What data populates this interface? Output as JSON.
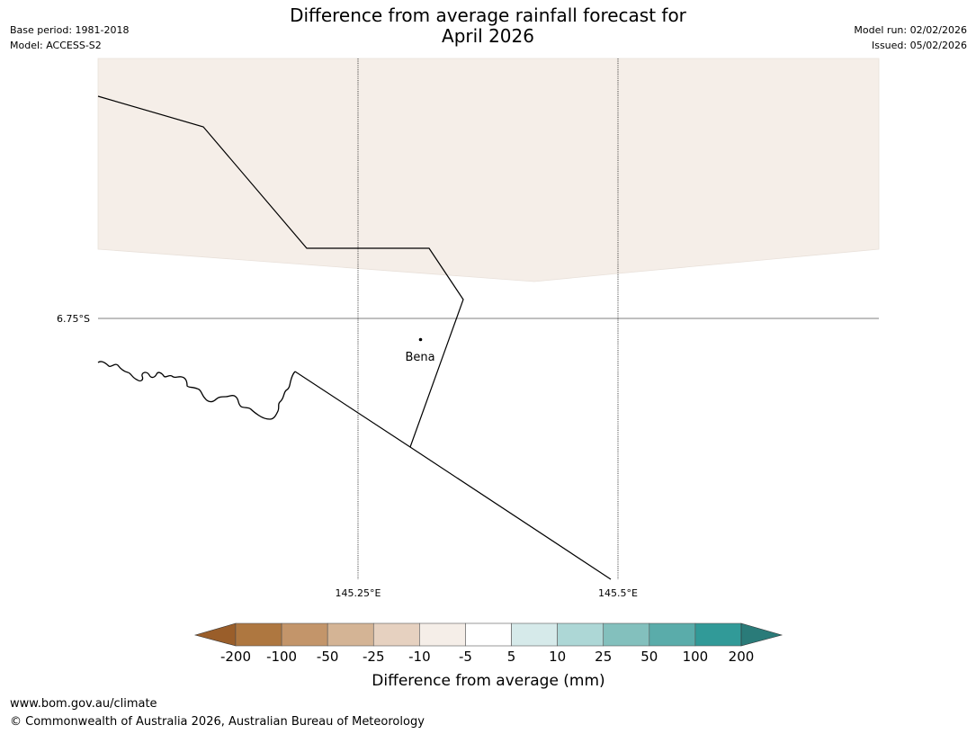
{
  "title": {
    "line1": "Difference from average rainfall forecast for",
    "line2": "April 2026"
  },
  "meta_left": {
    "base_period": "Base period: 1981-2018",
    "model": "Model: ACCESS-S2"
  },
  "meta_right": {
    "model_run": "Model run: 02/02/2026",
    "issued": "Issued: 05/02/2026"
  },
  "map": {
    "latitude_labels": [
      "6.75°S"
    ],
    "longitude_labels": [
      "145.25°E",
      "145.5°E"
    ],
    "place_name": "Bena",
    "shading_color": "#f5eee8"
  },
  "colorbar": {
    "ticks": [
      "-200",
      "-100",
      "-50",
      "-25",
      "-10",
      "-5",
      "5",
      "10",
      "25",
      "50",
      "100",
      "200"
    ],
    "colors": [
      "#9a5e2a",
      "#ae7740",
      "#c3956a",
      "#d4b495",
      "#e6d1c0",
      "#f5eee8",
      "#ffffff",
      "#d6eaea",
      "#add7d6",
      "#83c0bd",
      "#5aacaa",
      "#319a98",
      "#2a7b79"
    ],
    "label": "Difference from average (mm)"
  },
  "footer": {
    "url": "www.bom.gov.au/climate",
    "copyright": "© Commonwealth of Australia 2026, Australian Bureau of Meteorology"
  }
}
